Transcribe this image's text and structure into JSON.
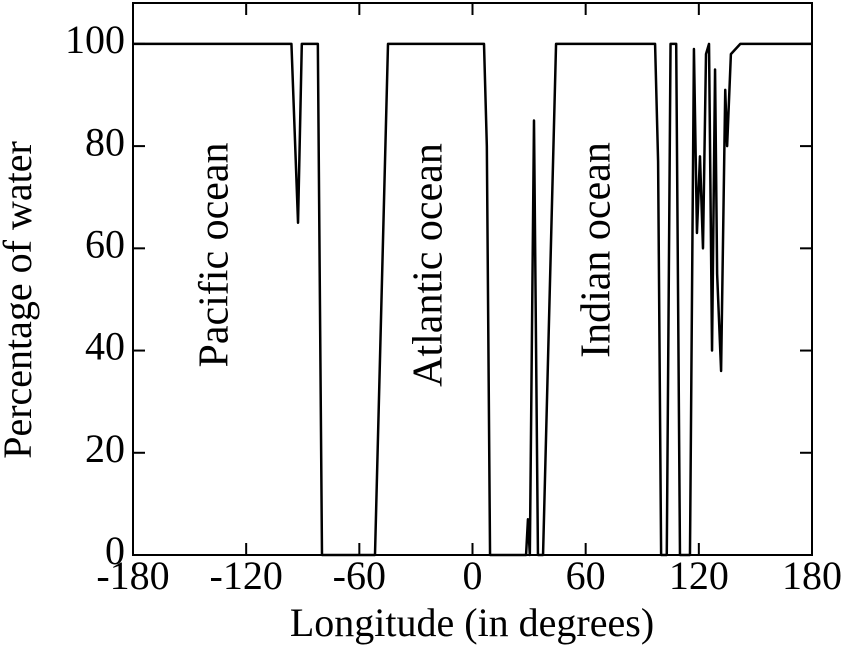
{
  "chart_data": {
    "type": "line",
    "x_label": "Longitude (in degrees)",
    "y_label": "Percentage of water",
    "annotations": [
      "Pacific ocean",
      "Atlantic ocean",
      "Indian ocean"
    ],
    "x": [
      -180,
      -96,
      -92.5,
      -90.5,
      -82,
      -79.8,
      -51.7,
      -44.8,
      6.1,
      7.6,
      9.3,
      28.4,
      29.4,
      30.4,
      32.6,
      34.7,
      37.4,
      44.3,
      96.8,
      98.4,
      100,
      103,
      105,
      108,
      110,
      115.3,
      117.4,
      119,
      120.6,
      122.2,
      123.8,
      125.4,
      127,
      128.6,
      129.7,
      131.8,
      134,
      135,
      137,
      142,
      180
    ],
    "series": [
      {
        "name": "Percentage of water",
        "color": "#000000",
        "values": [
          100,
          100,
          65,
          100,
          100,
          0,
          0,
          100,
          100,
          80,
          0,
          0,
          7,
          0,
          85,
          0,
          0,
          100,
          100,
          77,
          0,
          0,
          100,
          100,
          0,
          0,
          99,
          63,
          78,
          60,
          98,
          100,
          40,
          95,
          55,
          36,
          91,
          80,
          98,
          100,
          100
        ]
      }
    ],
    "xlim": [
      -180,
      180
    ],
    "xticks": [
      -180,
      -120,
      -60,
      0,
      60,
      120,
      180
    ],
    "ylim": [
      0,
      108
    ],
    "yticks": [
      0,
      20,
      40,
      60,
      80,
      100
    ]
  }
}
